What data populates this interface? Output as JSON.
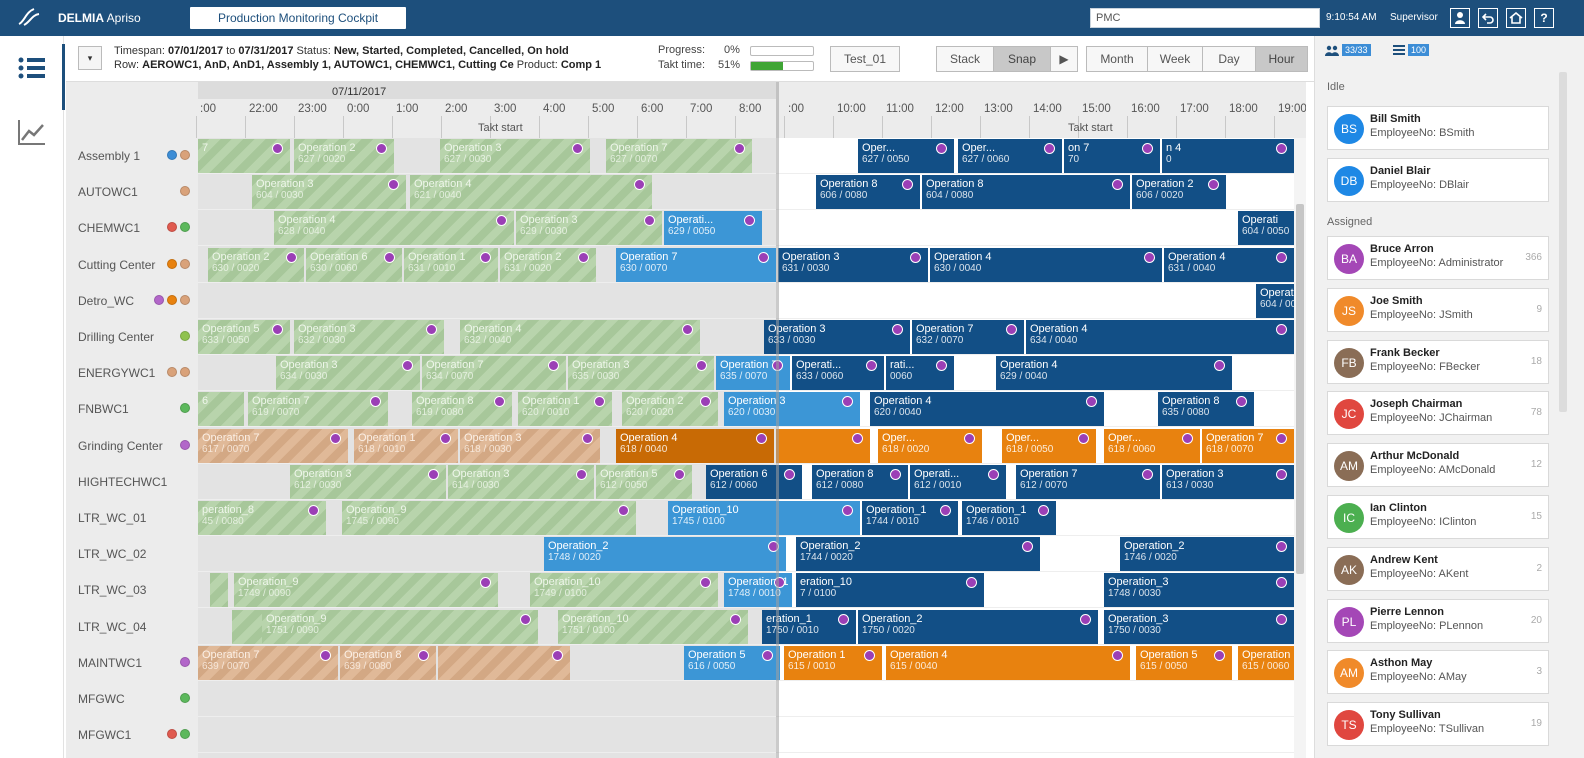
{
  "header": {
    "brand_bold": "DELMIA",
    "brand_light": " Apriso",
    "page_tab": "Production Monitoring Cockpit",
    "search_value": "PMC",
    "clock": "9:10:54 AM",
    "role": "Supervisor",
    "buttons": [
      "user-icon",
      "back-icon",
      "home-icon",
      "help-icon"
    ]
  },
  "toolbar": {
    "filter_label": "▾",
    "timespan_label": "Timespan:",
    "timespan_from": "07/01/2017",
    "to": "to",
    "timespan_to": "07/31/2017",
    "status_label": "Status:",
    "status_value": "New, Started, Completed, Cancelled, On hold",
    "row_label": "Row:",
    "row_value": "AEROWC1, AnD, AnD1, Assembly 1, AUTOWC1, CHEMWC1, Cutting Ce",
    "product_label": "Product:",
    "product_value": "Comp 1",
    "progress_label": "Progress:",
    "progress_value": "0%",
    "progress_fraction": 0,
    "takt_label": "Takt time:",
    "takt_value": "51%",
    "takt_fraction": 0.51,
    "test_button": "Test_01",
    "stack": "Stack",
    "snap": "Snap",
    "play": "▶",
    "month": "Month",
    "week": "Week",
    "day": "Day",
    "hour": "Hour"
  },
  "timeline": {
    "date": "07/11/2017",
    "hours": [
      ":00",
      "22:00",
      "23:00",
      "0:00",
      "1:00",
      "2:00",
      "3:00",
      "4:00",
      "5:00",
      "6:00",
      "7:00",
      "8:00",
      ":00",
      "10:00",
      "11:00",
      "12:00",
      "13:00",
      "14:00",
      "15:00",
      "16:00",
      "17:00",
      "18:00",
      "19:00"
    ],
    "takt1": "Takt start",
    "takt2": "Takt start"
  },
  "rows": [
    {
      "name": "Assembly 1",
      "dots": [
        "#3c8dd6",
        "#d9a27a"
      ]
    },
    {
      "name": "AUTOWC1",
      "dots": [
        "#d9a27a"
      ]
    },
    {
      "name": "CHEMWC1",
      "dots": [
        "#e05a4f",
        "#5cb85c"
      ]
    },
    {
      "name": "Cutting Center",
      "dots": [
        "#e8820f",
        "#d9a27a"
      ]
    },
    {
      "name": "Detro_WC",
      "dots": [
        "#b266c9",
        "#e8820f",
        "#d9a27a"
      ]
    },
    {
      "name": "Drilling Center",
      "dots": [
        "#8fc24f"
      ]
    },
    {
      "name": "ENERGYWC1",
      "dots": [
        "#d9a27a",
        "#d9a27a"
      ]
    },
    {
      "name": "FNBWC1",
      "dots": [
        "#5cb85c"
      ]
    },
    {
      "name": "Grinding Center",
      "dots": [
        "#b266c9"
      ]
    },
    {
      "name": "HIGHTECHWC1",
      "dots": []
    },
    {
      "name": "LTR_WC_01",
      "dots": []
    },
    {
      "name": "LTR_WC_02",
      "dots": []
    },
    {
      "name": "LTR_WC_03",
      "dots": []
    },
    {
      "name": "LTR_WC_04",
      "dots": []
    },
    {
      "name": "MAINTWC1",
      "dots": [
        "#b266c9"
      ]
    },
    {
      "name": "MFGWC",
      "dots": [
        "#5cb85c"
      ]
    },
    {
      "name": "MFGWC1",
      "dots": [
        "#e05a4f",
        "#5cb85c"
      ]
    }
  ],
  "bars": [
    {
      "row": 0,
      "t": "done",
      "x": 0,
      "w": 92,
      "l1": "7",
      "l2": ""
    },
    {
      "row": 0,
      "t": "done",
      "x": 96,
      "w": 100,
      "l1": "Operation 2",
      "l2": "627 / 0020"
    },
    {
      "row": 0,
      "t": "done",
      "x": 242,
      "w": 150,
      "l1": "Operation 3",
      "l2": "627 / 0030"
    },
    {
      "row": 0,
      "t": "done",
      "x": 408,
      "w": 146,
      "l1": "Operation 7",
      "l2": "627 / 0070"
    },
    {
      "row": 0,
      "t": "blue",
      "x": 660,
      "w": 96,
      "l1": "Oper...",
      "l2": "627 / 0050"
    },
    {
      "row": 0,
      "t": "blue",
      "x": 760,
      "w": 104,
      "l1": "Oper...",
      "l2": "627 / 0060"
    },
    {
      "row": 0,
      "t": "blue",
      "x": 866,
      "w": 96,
      "l1": "on 7",
      "l2": "70"
    },
    {
      "row": 0,
      "t": "blue",
      "x": 964,
      "w": 132,
      "l1": "n 4",
      "l2": "0"
    },
    {
      "row": 1,
      "t": "done",
      "x": 54,
      "w": 154,
      "l1": "Operation 3",
      "l2": "604 / 0030"
    },
    {
      "row": 1,
      "t": "done",
      "x": 212,
      "w": 242,
      "l1": "Operation 4",
      "l2": "621 / 0040"
    },
    {
      "row": 1,
      "t": "blue",
      "x": 618,
      "w": 104,
      "l1": "Operation 8",
      "l2": "606 / 0080"
    },
    {
      "row": 1,
      "t": "blue",
      "x": 724,
      "w": 208,
      "l1": "Operation 8",
      "l2": "604 / 0080"
    },
    {
      "row": 1,
      "t": "blue",
      "x": 934,
      "w": 94,
      "l1": "Operation 2",
      "l2": "606 / 0020"
    },
    {
      "row": 2,
      "t": "done",
      "x": 76,
      "w": 240,
      "l1": "Operation 4",
      "l2": "628 / 0040"
    },
    {
      "row": 2,
      "t": "done",
      "x": 318,
      "w": 146,
      "l1": "Operation 3",
      "l2": "629 / 0030"
    },
    {
      "row": 2,
      "t": "lightblue",
      "x": 466,
      "w": 98,
      "l1": "Operati...",
      "l2": "629 / 0050"
    },
    {
      "row": 2,
      "t": "blue",
      "x": 1040,
      "w": 56,
      "l1": "Operati",
      "l2": "604 / 0050"
    },
    {
      "row": 3,
      "t": "done",
      "x": 10,
      "w": 96,
      "l1": "Operation 2",
      "l2": "630 / 0020"
    },
    {
      "row": 3,
      "t": "done",
      "x": 108,
      "w": 96,
      "l1": "Operation 6",
      "l2": "630 / 0060"
    },
    {
      "row": 3,
      "t": "done",
      "x": 206,
      "w": 94,
      "l1": "Operation 1",
      "l2": "631 / 0010"
    },
    {
      "row": 3,
      "t": "done",
      "x": 302,
      "w": 96,
      "l1": "Operation 2",
      "l2": "631 / 0020"
    },
    {
      "row": 3,
      "t": "lightblue",
      "x": 418,
      "w": 160,
      "l1": "Operation 7",
      "l2": "630 / 0070"
    },
    {
      "row": 3,
      "t": "blue",
      "x": 580,
      "w": 150,
      "l1": "Operation 3",
      "l2": "631 / 0030"
    },
    {
      "row": 3,
      "t": "blue",
      "x": 732,
      "w": 232,
      "l1": "Operation 4",
      "l2": "630 / 0040"
    },
    {
      "row": 3,
      "t": "blue",
      "x": 966,
      "w": 130,
      "l1": "Operation 4",
      "l2": "631 / 0040"
    },
    {
      "row": 4,
      "t": "blue",
      "x": 1058,
      "w": 38,
      "l1": "Operat",
      "l2": "604 / 00"
    },
    {
      "row": 5,
      "t": "done",
      "x": 0,
      "w": 92,
      "l1": "Operation 5",
      "l2": "633 / 0050"
    },
    {
      "row": 5,
      "t": "done",
      "x": 96,
      "w": 150,
      "l1": "Operation 3",
      "l2": "632 / 0030"
    },
    {
      "row": 5,
      "t": "done",
      "x": 262,
      "w": 240,
      "l1": "Operation 4",
      "l2": "632 / 0040"
    },
    {
      "row": 5,
      "t": "blue",
      "x": 566,
      "w": 146,
      "l1": "Operation 3",
      "l2": "633 / 0030"
    },
    {
      "row": 5,
      "t": "blue",
      "x": 714,
      "w": 112,
      "l1": "Operation 7",
      "l2": "632 / 0070"
    },
    {
      "row": 5,
      "t": "blue",
      "x": 828,
      "w": 268,
      "l1": "Operation 4",
      "l2": "634 / 0040"
    },
    {
      "row": 6,
      "t": "done",
      "x": 78,
      "w": 144,
      "l1": "Operation 3",
      "l2": "634 / 0030"
    },
    {
      "row": 6,
      "t": "done",
      "x": 224,
      "w": 144,
      "l1": "Operation 7",
      "l2": "634 / 0070"
    },
    {
      "row": 6,
      "t": "done",
      "x": 370,
      "w": 146,
      "l1": "Operation 3",
      "l2": "635 / 0030"
    },
    {
      "row": 6,
      "t": "lightblue",
      "x": 518,
      "w": 74,
      "l1": "Operation 7",
      "l2": "635 / 0070"
    },
    {
      "row": 6,
      "t": "blue",
      "x": 594,
      "w": 92,
      "l1": "Operati...",
      "l2": "633 / 0060"
    },
    {
      "row": 6,
      "t": "blue",
      "x": 688,
      "w": 68,
      "l1": "rati...",
      "l2": "0060"
    },
    {
      "row": 6,
      "t": "blue",
      "x": 798,
      "w": 236,
      "l1": "Operation 4",
      "l2": "629 / 0040"
    },
    {
      "row": 7,
      "t": "done",
      "x": 0,
      "w": 46,
      "l1": "6",
      "l2": ""
    },
    {
      "row": 7,
      "t": "done",
      "x": 50,
      "w": 140,
      "l1": "Operation 7",
      "l2": "619 / 0070"
    },
    {
      "row": 7,
      "t": "done",
      "x": 214,
      "w": 100,
      "l1": "Operation 8",
      "l2": "619 / 0080"
    },
    {
      "row": 7,
      "t": "done",
      "x": 320,
      "w": 94,
      "l1": "Operation 1",
      "l2": "620 / 0010"
    },
    {
      "row": 7,
      "t": "done",
      "x": 424,
      "w": 96,
      "l1": "Operation 2",
      "l2": "620 / 0020"
    },
    {
      "row": 7,
      "t": "lightblue",
      "x": 526,
      "w": 136,
      "l1": "Operation 3",
      "l2": "620 / 0030"
    },
    {
      "row": 7,
      "t": "blue",
      "x": 672,
      "w": 234,
      "l1": "Operation 4",
      "l2": "620 / 0040"
    },
    {
      "row": 7,
      "t": "blue",
      "x": 960,
      "w": 96,
      "l1": "Operation 8",
      "l2": "635 / 0080"
    },
    {
      "row": 8,
      "t": "done-orange",
      "x": 0,
      "w": 150,
      "l1": "Operation 7",
      "l2": "617 / 0070"
    },
    {
      "row": 8,
      "t": "done-orange",
      "x": 156,
      "w": 104,
      "l1": "Operation 1",
      "l2": "618 / 0010"
    },
    {
      "row": 8,
      "t": "done-orange",
      "x": 262,
      "w": 140,
      "l1": "Operation 3",
      "l2": "618 / 0030"
    },
    {
      "row": 8,
      "t": "darkorange",
      "x": 418,
      "w": 158,
      "l1": "Operation 4",
      "l2": "618 / 0040"
    },
    {
      "row": 8,
      "t": "orange",
      "x": 578,
      "w": 94,
      "l1": "",
      "l2": ""
    },
    {
      "row": 8,
      "t": "orange",
      "x": 680,
      "w": 104,
      "l1": "Oper...",
      "l2": "618 / 0020"
    },
    {
      "row": 8,
      "t": "orange",
      "x": 804,
      "w": 94,
      "l1": "Oper...",
      "l2": "618 / 0050"
    },
    {
      "row": 8,
      "t": "orange",
      "x": 906,
      "w": 96,
      "l1": "Oper...",
      "l2": "618 / 0060"
    },
    {
      "row": 8,
      "t": "orange",
      "x": 1004,
      "w": 92,
      "l1": "Operation 7",
      "l2": "618 / 0070"
    },
    {
      "row": 9,
      "t": "done",
      "x": 92,
      "w": 156,
      "l1": "Operation 3",
      "l2": "612 / 0030"
    },
    {
      "row": 9,
      "t": "done",
      "x": 250,
      "w": 146,
      "l1": "Operation 3",
      "l2": "614 / 0030"
    },
    {
      "row": 9,
      "t": "done",
      "x": 398,
      "w": 96,
      "l1": "Operation 5",
      "l2": "612 / 0050"
    },
    {
      "row": 9,
      "t": "blue",
      "x": 508,
      "w": 96,
      "l1": "Operation 6",
      "l2": "612 / 0060"
    },
    {
      "row": 9,
      "t": "blue",
      "x": 614,
      "w": 96,
      "l1": "Operation 8",
      "l2": "612 / 0080"
    },
    {
      "row": 9,
      "t": "blue",
      "x": 712,
      "w": 96,
      "l1": "Operati...",
      "l2": "612 / 0010"
    },
    {
      "row": 9,
      "t": "blue",
      "x": 818,
      "w": 144,
      "l1": "Operation 7",
      "l2": "612 / 0070"
    },
    {
      "row": 9,
      "t": "blue",
      "x": 964,
      "w": 132,
      "l1": "Operation 3",
      "l2": "613 / 0030"
    },
    {
      "row": 10,
      "t": "done",
      "x": 0,
      "w": 128,
      "l1": "peration_8",
      "l2": "45 / 0080"
    },
    {
      "row": 10,
      "t": "done",
      "x": 144,
      "w": 294,
      "l1": "Operation_9",
      "l2": "1745 / 0090"
    },
    {
      "row": 10,
      "t": "lightblue",
      "x": 470,
      "w": 192,
      "l1": "Operation_10",
      "l2": "1745 / 0100"
    },
    {
      "row": 10,
      "t": "blue",
      "x": 664,
      "w": 96,
      "l1": "Operation_1",
      "l2": "1744 / 0010"
    },
    {
      "row": 10,
      "t": "blue",
      "x": 764,
      "w": 94,
      "l1": "Operation_1",
      "l2": "1746 / 0010"
    },
    {
      "row": 11,
      "t": "lightblue",
      "x": 346,
      "w": 242,
      "l1": "Operation_2",
      "l2": "1748 / 0020"
    },
    {
      "row": 11,
      "t": "blue",
      "x": 598,
      "w": 244,
      "l1": "Operation_2",
      "l2": "1744 / 0020"
    },
    {
      "row": 11,
      "t": "blue",
      "x": 922,
      "w": 174,
      "l1": "Operation_2",
      "l2": "1746 / 0020"
    },
    {
      "row": 12,
      "t": "done",
      "x": 12,
      "w": 18,
      "l1": "",
      "l2": ""
    },
    {
      "row": 12,
      "t": "done",
      "x": 36,
      "w": 264,
      "l1": "Operation_9",
      "l2": "1749 / 0090"
    },
    {
      "row": 12,
      "t": "done",
      "x": 332,
      "w": 188,
      "l1": "Operation_10",
      "l2": "1749 / 0100"
    },
    {
      "row": 12,
      "t": "lightblue",
      "x": 526,
      "w": 68,
      "l1": "Operation_1",
      "l2": "1748 / 0010"
    },
    {
      "row": 12,
      "t": "blue",
      "x": 598,
      "w": 188,
      "l1": "eration_10",
      "l2": "7 / 0100"
    },
    {
      "row": 12,
      "t": "blue",
      "x": 906,
      "w": 190,
      "l1": "Operation_3",
      "l2": "1748 / 0030"
    },
    {
      "row": 13,
      "t": "done",
      "x": 34,
      "w": 30,
      "l1": "",
      "l2": ""
    },
    {
      "row": 13,
      "t": "done",
      "x": 64,
      "w": 276,
      "l1": "Operation_9",
      "l2": "1751 / 0090"
    },
    {
      "row": 13,
      "t": "done",
      "x": 360,
      "w": 190,
      "l1": "Operation_10",
      "l2": "1751 / 0100"
    },
    {
      "row": 13,
      "t": "blue",
      "x": 564,
      "w": 94,
      "l1": "eration_1",
      "l2": "1750 / 0010"
    },
    {
      "row": 13,
      "t": "blue",
      "x": 660,
      "w": 240,
      "l1": "Operation_2",
      "l2": "1750 / 0020"
    },
    {
      "row": 13,
      "t": "blue",
      "x": 906,
      "w": 190,
      "l1": "Operation_3",
      "l2": "1750 / 0030"
    },
    {
      "row": 14,
      "t": "done-orange",
      "x": 0,
      "w": 140,
      "l1": "Operation 7",
      "l2": "639 / 0070"
    },
    {
      "row": 14,
      "t": "done-orange",
      "x": 142,
      "w": 96,
      "l1": "Operation 8",
      "l2": "639 / 0080"
    },
    {
      "row": 14,
      "t": "done-orange",
      "x": 240,
      "w": 132,
      "l1": "",
      "l2": ""
    },
    {
      "row": 14,
      "t": "lightblue",
      "x": 486,
      "w": 96,
      "l1": "Operation 5",
      "l2": "616 / 0050"
    },
    {
      "row": 14,
      "t": "orange",
      "x": 586,
      "w": 98,
      "l1": "Operation 1",
      "l2": "615 / 0010"
    },
    {
      "row": 14,
      "t": "orange",
      "x": 688,
      "w": 244,
      "l1": "Operation 4",
      "l2": "615 / 0040"
    },
    {
      "row": 14,
      "t": "orange",
      "x": 938,
      "w": 96,
      "l1": "Operation 5",
      "l2": "615 / 0050"
    },
    {
      "row": 14,
      "t": "orange",
      "x": 1040,
      "w": 56,
      "l1": "Operation",
      "l2": "615 / 0060"
    }
  ],
  "panel": {
    "people_count": "33/33",
    "list_count": "100",
    "idle_label": "Idle",
    "assigned_label": "Assigned",
    "idle": [
      {
        "initials": "BS",
        "name": "Bill Smith",
        "emp": "EmployeeNo: BSmith",
        "color": "#1e88e5",
        "count": ""
      },
      {
        "initials": "DB",
        "name": "Daniel Blair",
        "emp": "EmployeeNo: DBlair",
        "color": "#1e88e5",
        "count": ""
      }
    ],
    "assigned": [
      {
        "initials": "BA",
        "name": "Bruce Arron",
        "emp": "EmployeeNo: Administrator",
        "color": "#a447b6",
        "count": "366"
      },
      {
        "initials": "JS",
        "name": "Joe Smith",
        "emp": "EmployeeNo: JSmith",
        "color": "#f08a2a",
        "count": "9"
      },
      {
        "initials": "FB",
        "name": "Frank Becker",
        "emp": "EmployeeNo: FBecker",
        "color": "#8a6d56",
        "count": "18"
      },
      {
        "initials": "JC",
        "name": "Joseph Chairman",
        "emp": "EmployeeNo: JChairman",
        "color": "#e0473f",
        "count": "78"
      },
      {
        "initials": "AM",
        "name": "Arthur McDonald",
        "emp": "EmployeeNo: AMcDonald",
        "color": "#8a6d56",
        "count": "12"
      },
      {
        "initials": "IC",
        "name": "Ian Clinton",
        "emp": "EmployeeNo: IClinton",
        "color": "#4caf50",
        "count": "15"
      },
      {
        "initials": "AK",
        "name": "Andrew Kent",
        "emp": "EmployeeNo: AKent",
        "color": "#8a6d56",
        "count": "2"
      },
      {
        "initials": "PL",
        "name": "Pierre Lennon",
        "emp": "EmployeeNo: PLennon",
        "color": "#a447b6",
        "count": "20"
      },
      {
        "initials": "AM",
        "name": "Asthon May",
        "emp": "EmployeeNo: AMay",
        "color": "#f08a2a",
        "count": "3"
      },
      {
        "initials": "TS",
        "name": "Tony Sullivan",
        "emp": "EmployeeNo: TSullivan",
        "color": "#e0473f",
        "count": "19"
      }
    ]
  }
}
